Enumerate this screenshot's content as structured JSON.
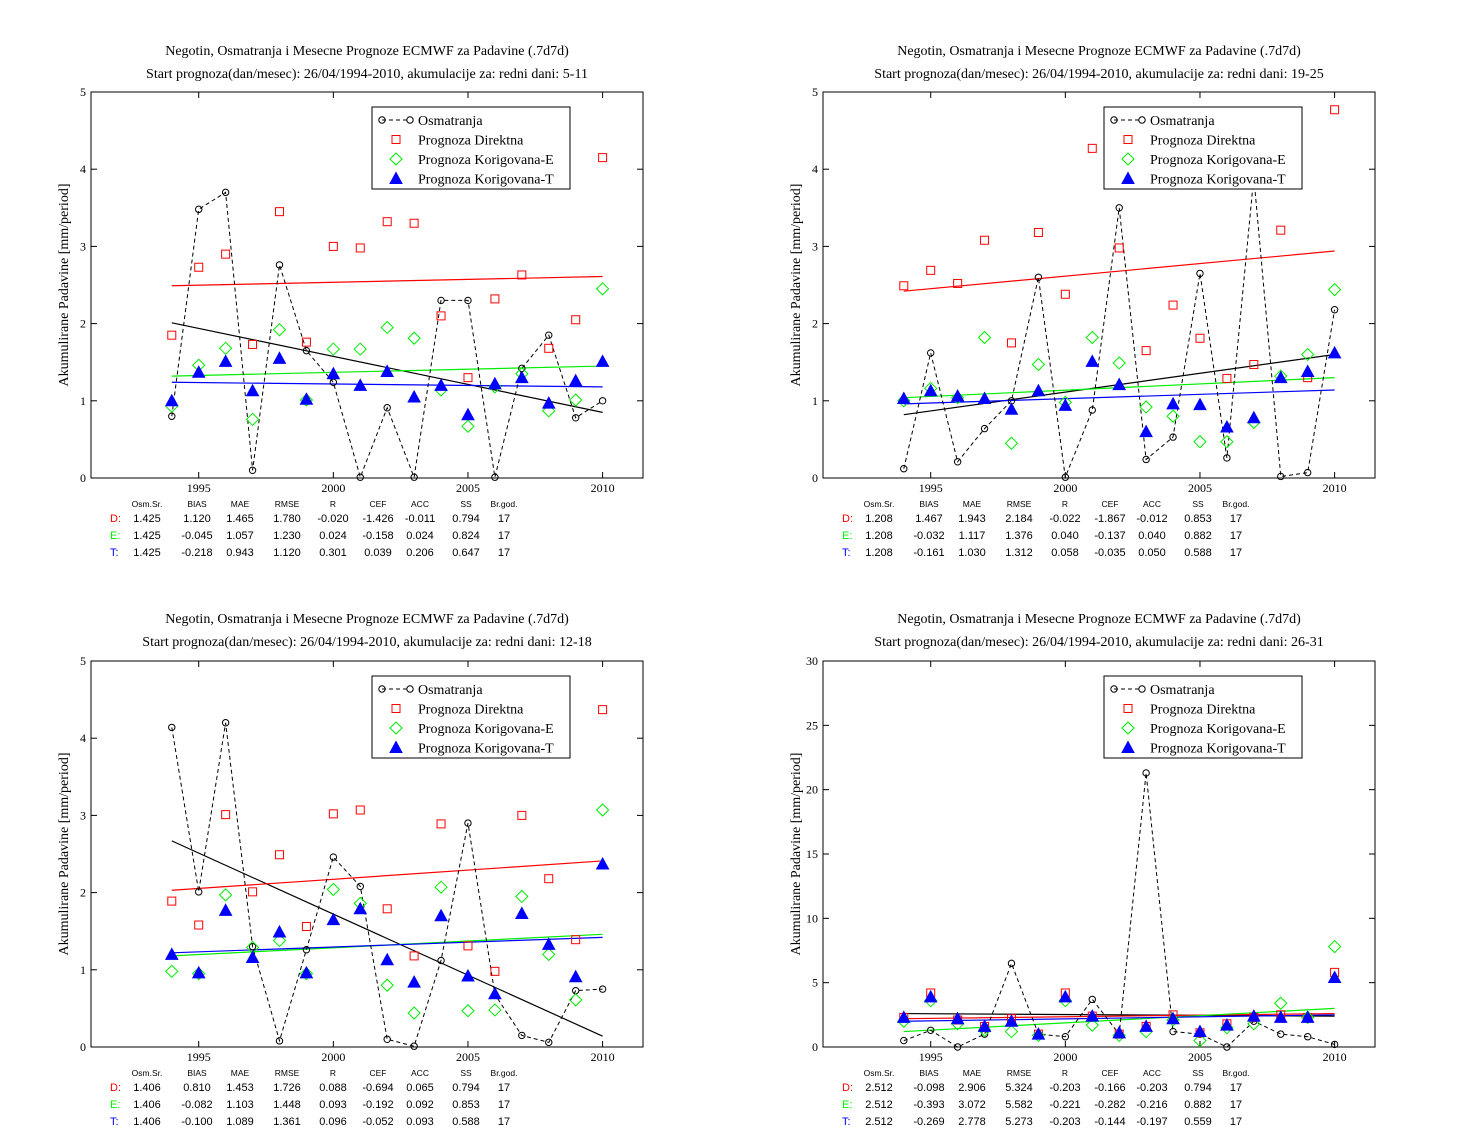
{
  "colors": {
    "observed": "#000000",
    "direct": "#ff0000",
    "corr_e": "#00ee00",
    "corr_t": "#0000ff"
  },
  "icons": {
    "observed": "circle-dashed-line",
    "direct": "open-square",
    "corr_e": "open-diamond",
    "corr_t": "filled-triangle"
  },
  "stats_headers": [
    "Osm.Sr.",
    "BIAS",
    "MAE",
    "RMSE",
    "R",
    "CEF",
    "ACC",
    "SS",
    "Br.god."
  ],
  "chart_data": [
    {
      "type": "scatter",
      "title": "Negotin, Osmatranja i Mesecne Prognoze ECMWF za Padavine (.7d7d)",
      "subtitle": "Start prognoza(dan/mesec): 26/04/1994-2010, akumulacije za: redni dani: 5-11",
      "xlabel": "",
      "ylabel": "Akumulirane Padavine [mm/period]",
      "xlim": [
        1991,
        2011.5
      ],
      "ylim": [
        0,
        5
      ],
      "xticks": [
        1995,
        2000,
        2005,
        2010
      ],
      "yticks": [
        0,
        1,
        2,
        3,
        4,
        5
      ],
      "legend_position": "top-right",
      "grid": false,
      "x": [
        1994,
        1995,
        1996,
        1997,
        1998,
        1999,
        2000,
        2001,
        2002,
        2003,
        2004,
        2005,
        2006,
        2007,
        2008,
        2009,
        2010
      ],
      "series": [
        {
          "name": "Osmatranja",
          "key": "observed",
          "style": "line-circle",
          "values": [
            0.8,
            3.48,
            3.7,
            0.1,
            2.76,
            1.65,
            1.24,
            0.01,
            0.91,
            0.01,
            2.3,
            2.3,
            0.01,
            1.42,
            1.85,
            0.78,
            1.0
          ],
          "trend": [
            2.01,
            0.85
          ]
        },
        {
          "name": "Prognoza Direktna",
          "key": "direct",
          "style": "square",
          "values": [
            1.85,
            2.73,
            2.9,
            1.73,
            3.45,
            1.76,
            3.0,
            2.98,
            3.32,
            3.3,
            2.1,
            1.3,
            2.32,
            2.63,
            1.68,
            2.05,
            4.15
          ],
          "trend": [
            2.49,
            2.61
          ]
        },
        {
          "name": "Prognoza Korigovana-E",
          "key": "corr_e",
          "style": "diamond",
          "values": [
            0.93,
            1.46,
            1.68,
            0.76,
            1.92,
            1.01,
            1.67,
            1.67,
            1.95,
            1.81,
            1.14,
            0.67,
            1.18,
            1.35,
            0.87,
            1.01,
            2.45
          ],
          "trend": [
            1.32,
            1.45
          ]
        },
        {
          "name": "Prognoza Korigovana-T",
          "key": "corr_t",
          "style": "triangle",
          "values": [
            1.0,
            1.37,
            1.51,
            1.13,
            1.55,
            1.02,
            1.35,
            1.2,
            1.38,
            1.05,
            1.2,
            0.82,
            1.22,
            1.3,
            0.97,
            1.26,
            1.51
          ],
          "trend": [
            1.24,
            1.18
          ]
        }
      ],
      "stats": [
        {
          "label": "D:",
          "key": "direct",
          "values": [
            "1.425",
            "1.120",
            "1.465",
            "1.780",
            "-0.020",
            "-1.426",
            "-0.011",
            "0.794",
            "17"
          ]
        },
        {
          "label": "E:",
          "key": "corr_e",
          "values": [
            "1.425",
            "-0.045",
            "1.057",
            "1.230",
            "0.024",
            "-0.158",
            "0.024",
            "0.824",
            "17"
          ]
        },
        {
          "label": "T:",
          "key": "corr_t",
          "values": [
            "1.425",
            "-0.218",
            "0.943",
            "1.120",
            "0.301",
            "0.039",
            "0.206",
            "0.647",
            "17"
          ]
        }
      ]
    },
    {
      "type": "scatter",
      "title": "Negotin, Osmatranja i Mesecne Prognoze ECMWF za Padavine (.7d7d)",
      "subtitle": "Start prognoza(dan/mesec): 26/04/1994-2010, akumulacije za: redni dani: 19-25",
      "xlabel": "",
      "ylabel": "Akumulirane Padavine [mm/period]",
      "xlim": [
        1991,
        2011.5
      ],
      "ylim": [
        0,
        5
      ],
      "xticks": [
        1995,
        2000,
        2005,
        2010
      ],
      "yticks": [
        0,
        1,
        2,
        3,
        4,
        5
      ],
      "legend_position": "top-right",
      "grid": false,
      "x": [
        1994,
        1995,
        1996,
        1997,
        1998,
        1999,
        2000,
        2001,
        2002,
        2003,
        2004,
        2005,
        2006,
        2007,
        2008,
        2009,
        2010
      ],
      "series": [
        {
          "name": "Osmatranja",
          "key": "observed",
          "style": "line-circle",
          "values": [
            0.12,
            1.62,
            0.21,
            0.64,
            1.0,
            2.6,
            0.01,
            0.88,
            3.5,
            0.24,
            0.53,
            2.65,
            0.26,
            3.9,
            0.02,
            0.07,
            2.18
          ],
          "trend": [
            0.82,
            1.6
          ]
        },
        {
          "name": "Prognoza Direktna",
          "key": "direct",
          "style": "square",
          "values": [
            2.49,
            2.69,
            2.52,
            3.08,
            1.75,
            3.18,
            2.38,
            4.27,
            2.98,
            1.65,
            2.24,
            1.81,
            1.29,
            1.47,
            3.21,
            1.3,
            4.77
          ],
          "trend": [
            2.42,
            2.94
          ]
        },
        {
          "name": "Prognoza Korigovana-E",
          "key": "corr_e",
          "style": "diamond",
          "values": [
            1.0,
            1.16,
            1.04,
            1.82,
            0.45,
            1.47,
            0.98,
            1.82,
            1.49,
            0.92,
            0.8,
            0.47,
            0.47,
            0.72,
            1.32,
            1.6,
            2.44
          ],
          "trend": [
            1.04,
            1.3
          ]
        },
        {
          "name": "Prognoza Korigovana-T",
          "key": "corr_t",
          "style": "triangle",
          "values": [
            1.03,
            1.13,
            1.06,
            1.03,
            0.89,
            1.13,
            0.94,
            1.51,
            1.21,
            0.6,
            0.96,
            0.95,
            0.66,
            0.78,
            1.3,
            1.38,
            1.62
          ],
          "trend": [
            0.96,
            1.14
          ]
        }
      ],
      "stats": [
        {
          "label": "D:",
          "key": "direct",
          "values": [
            "1.208",
            "1.467",
            "1.943",
            "2.184",
            "-0.022",
            "-1.867",
            "-0.012",
            "0.853",
            "17"
          ]
        },
        {
          "label": "E:",
          "key": "corr_e",
          "values": [
            "1.208",
            "-0.032",
            "1.117",
            "1.376",
            "0.040",
            "-0.137",
            "0.040",
            "0.882",
            "17"
          ]
        },
        {
          "label": "T:",
          "key": "corr_t",
          "values": [
            "1.208",
            "-0.161",
            "1.030",
            "1.312",
            "0.058",
            "-0.035",
            "0.050",
            "0.588",
            "17"
          ]
        }
      ]
    },
    {
      "type": "scatter",
      "title": "Negotin, Osmatranja i Mesecne Prognoze ECMWF za Padavine (.7d7d)",
      "subtitle": "Start prognoza(dan/mesec): 26/04/1994-2010, akumulacije za: redni dani: 12-18",
      "xlabel": "",
      "ylabel": "Akumulirane Padavine [mm/period]",
      "xlim": [
        1991,
        2011.5
      ],
      "ylim": [
        0,
        5
      ],
      "xticks": [
        1995,
        2000,
        2005,
        2010
      ],
      "yticks": [
        0,
        1,
        2,
        3,
        4,
        5
      ],
      "legend_position": "top-right",
      "grid": false,
      "x": [
        1994,
        1995,
        1996,
        1997,
        1998,
        1999,
        2000,
        2001,
        2002,
        2003,
        2004,
        2005,
        2006,
        2007,
        2008,
        2009,
        2010
      ],
      "series": [
        {
          "name": "Osmatranja",
          "key": "observed",
          "style": "line-circle",
          "values": [
            4.14,
            2.01,
            4.2,
            1.3,
            0.08,
            1.26,
            2.46,
            2.08,
            0.1,
            0.01,
            1.12,
            2.9,
            0.68,
            0.15,
            0.06,
            0.73,
            0.75
          ],
          "trend": [
            2.67,
            0.14
          ]
        },
        {
          "name": "Prognoza Direktna",
          "key": "direct",
          "style": "square",
          "values": [
            1.89,
            1.58,
            3.01,
            2.01,
            2.49,
            1.56,
            3.02,
            3.07,
            1.79,
            1.18,
            2.89,
            1.31,
            0.98,
            3.0,
            2.18,
            1.39,
            4.37
          ],
          "trend": [
            2.03,
            2.41
          ]
        },
        {
          "name": "Prognoza Korigovana-E",
          "key": "corr_e",
          "style": "diamond",
          "values": [
            0.98,
            0.95,
            1.97,
            1.29,
            1.38,
            0.95,
            2.04,
            1.86,
            0.8,
            0.44,
            2.07,
            0.47,
            0.48,
            1.95,
            1.2,
            0.61,
            3.07
          ],
          "trend": [
            1.18,
            1.46
          ]
        },
        {
          "name": "Prognoza Korigovana-T",
          "key": "corr_t",
          "style": "triangle",
          "values": [
            1.2,
            0.96,
            1.77,
            1.16,
            1.49,
            0.96,
            1.65,
            1.79,
            1.13,
            0.84,
            1.7,
            0.92,
            0.69,
            1.73,
            1.33,
            0.91,
            2.37
          ],
          "trend": [
            1.22,
            1.42
          ]
        }
      ],
      "stats": [
        {
          "label": "D:",
          "key": "direct",
          "values": [
            "1.406",
            "0.810",
            "1.453",
            "1.726",
            "0.088",
            "-0.694",
            "0.065",
            "0.794",
            "17"
          ]
        },
        {
          "label": "E:",
          "key": "corr_e",
          "values": [
            "1.406",
            "-0.082",
            "1.103",
            "1.448",
            "0.093",
            "-0.192",
            "0.092",
            "0.853",
            "17"
          ]
        },
        {
          "label": "T:",
          "key": "corr_t",
          "values": [
            "1.406",
            "-0.100",
            "1.089",
            "1.361",
            "0.096",
            "-0.052",
            "0.093",
            "0.588",
            "17"
          ]
        }
      ]
    },
    {
      "type": "scatter",
      "title": "Negotin, Osmatranja i Mesecne Prognoze ECMWF za Padavine (.7d7d)",
      "subtitle": "Start prognoza(dan/mesec): 26/04/1994-2010, akumulacije za: redni dani: 26-31",
      "xlabel": "",
      "ylabel": "Akumulirane Padavine [mm/period]",
      "xlim": [
        1991,
        2011.5
      ],
      "ylim": [
        0,
        30
      ],
      "xticks": [
        1995,
        2000,
        2005,
        2010
      ],
      "yticks": [
        0,
        5,
        10,
        15,
        20,
        25,
        30
      ],
      "legend_position": "top-right",
      "grid": false,
      "x": [
        1994,
        1995,
        1996,
        1997,
        1998,
        1999,
        2000,
        2001,
        2002,
        2003,
        2004,
        2005,
        2006,
        2007,
        2008,
        2009,
        2010
      ],
      "series": [
        {
          "name": "Osmatranja",
          "key": "observed",
          "style": "line-circle",
          "values": [
            0.5,
            1.3,
            0.0,
            1.0,
            6.5,
            1.0,
            0.8,
            3.7,
            1.0,
            21.3,
            1.2,
            1.0,
            0.0,
            2.0,
            1.0,
            0.8,
            0.2
          ],
          "trend": [
            2.6,
            2.4
          ]
        },
        {
          "name": "Prognoza Direktna",
          "key": "direct",
          "style": "square",
          "values": [
            2.3,
            4.2,
            2.1,
            1.6,
            2.2,
            1.0,
            4.2,
            2.4,
            1.0,
            1.6,
            2.5,
            1.1,
            1.8,
            2.3,
            2.5,
            2.3,
            5.8
          ],
          "trend": [
            2.2,
            2.6
          ]
        },
        {
          "name": "Prognoza Korigovana-E",
          "key": "corr_e",
          "style": "diamond",
          "values": [
            2.0,
            3.6,
            1.8,
            1.3,
            1.2,
            0.9,
            3.6,
            1.7,
            0.9,
            1.2,
            2.1,
            0.5,
            1.5,
            1.8,
            3.4,
            2.3,
            7.8
          ],
          "trend": [
            1.2,
            3.0
          ]
        },
        {
          "name": "Prognoza Korigovana-T",
          "key": "corr_t",
          "style": "triangle",
          "values": [
            2.3,
            3.9,
            2.2,
            1.6,
            2.0,
            1.0,
            3.9,
            2.4,
            1.1,
            1.6,
            2.2,
            1.2,
            1.7,
            2.4,
            2.3,
            2.3,
            5.4
          ],
          "trend": [
            2.0,
            2.5
          ]
        }
      ],
      "stats": [
        {
          "label": "D:",
          "key": "direct",
          "values": [
            "2.512",
            "-0.098",
            "2.906",
            "5.324",
            "-0.203",
            "-0.166",
            "-0.203",
            "0.794",
            "17"
          ]
        },
        {
          "label": "E:",
          "key": "corr_e",
          "values": [
            "2.512",
            "-0.393",
            "3.072",
            "5.582",
            "-0.221",
            "-0.282",
            "-0.216",
            "0.882",
            "17"
          ]
        },
        {
          "label": "T:",
          "key": "corr_t",
          "values": [
            "2.512",
            "-0.269",
            "2.778",
            "5.273",
            "-0.203",
            "-0.144",
            "-0.197",
            "0.559",
            "17"
          ]
        }
      ]
    }
  ]
}
